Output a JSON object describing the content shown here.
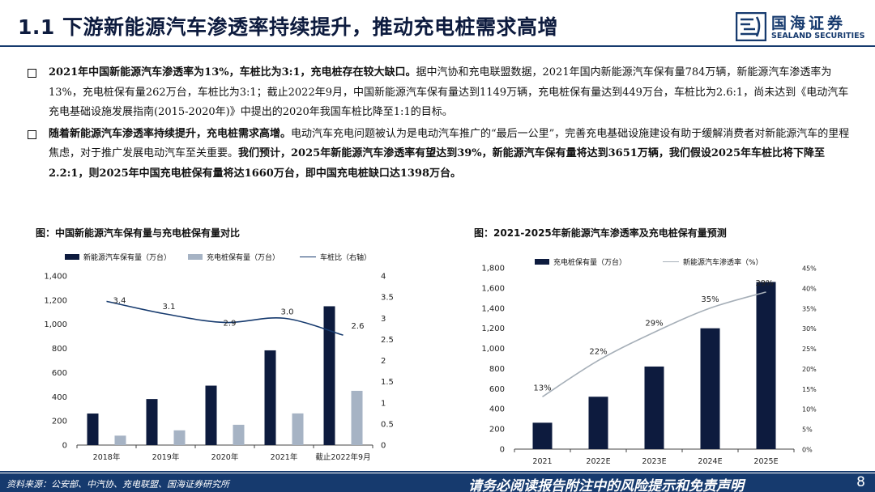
{
  "header": {
    "title": "1.1 下游新能源汽车渗透率持续提升，推动充电桩需求高增",
    "logo_cn": "国海证券",
    "logo_en": "SEALAND SECURITIES"
  },
  "bullets": [
    {
      "bold": "2021年中国新能源汽车渗透率为13%，车桩比为3:1，充电桩存在较大缺口。",
      "text": "据中汽协和充电联盟数据，2021年国内新能源汽车保有量784万辆，新能源汽车渗透率为13%，充电桩保有量262万台，车桩比为3:1；截止2022年9月，中国新能源汽车保有量达到1149万辆，充电桩保有量达到449万台，车桩比为2.6:1，尚未达到《电动汽车充电基础设施发展指南(2015-2020年)》中提出的2020年我国车桩比降至1:1的目标。",
      "bold2": ""
    },
    {
      "bold": "随着新能源汽车渗透率持续提升，充电桩需求高增。",
      "text": "电动汽车充电问题被认为是电动汽车推广的“最后一公里”，完善充电基础设施建设有助于缓解消费者对新能源汽车的里程焦虑，对于推广发展电动汽车至关重要。",
      "bold2": "我们预计，2025年新能源汽车渗透率有望达到39%，新能源汽车保有量将达到3651万辆，我们假设2025年车桩比将下降至2.2:1，则2025年中国充电桩保有量将达1660万台，即中国充电桩缺口达1398万台。"
    }
  ],
  "chart_left": {
    "title": "图：中国新能源汽车保有量与充电桩保有量对比",
    "legend": {
      "ev": "新能源汽车保有量（万台）",
      "pile": "充电桩保有量（万台）",
      "ratio": "车桩比（右轴）"
    },
    "colors": {
      "ev": "#0d1b3e",
      "pile": "#a6b3c4",
      "ratio": "#163a6e"
    }
  },
  "chart_right": {
    "title": "图：2021-2025年新能源汽车渗透率及充电桩保有量预测",
    "legend": {
      "pile": "充电桩保有量（万台）",
      "penetration": "新能源汽车渗透率（%）"
    },
    "colors": {
      "pile": "#0d1b3e",
      "penetration": "#a6afb8"
    }
  },
  "chart_data": [
    {
      "type": "bar",
      "categories": [
        "2018年",
        "2019年",
        "2020年",
        "2021年",
        "截止2022年9月"
      ],
      "series": [
        {
          "name": "新能源汽车保有量（万台）",
          "axis": "left",
          "values": [
            261,
            381,
            492,
            784,
            1149
          ]
        },
        {
          "name": "充电桩保有量（万台）",
          "axis": "left",
          "values": [
            78,
            122,
            168,
            262,
            449
          ]
        },
        {
          "name": "车桩比（右轴）",
          "type": "line",
          "axis": "right",
          "values": [
            3.4,
            3.1,
            2.9,
            3.0,
            2.6
          ],
          "labels": [
            "3.4",
            "3.1",
            "2.9",
            "3.0",
            "2.6"
          ]
        }
      ],
      "ylim": [
        0,
        1400
      ],
      "yticks": [
        0,
        200,
        400,
        600,
        800,
        1000,
        1200,
        1400
      ],
      "ytick_labels": [
        "0",
        "200",
        "400",
        "600",
        "800",
        "1,000",
        "1,200",
        "1,400"
      ],
      "y2lim": [
        0,
        4
      ],
      "y2ticks": [
        0,
        0.5,
        1,
        1.5,
        2,
        2.5,
        3,
        3.5,
        4
      ],
      "y2tick_labels": [
        "0",
        "0.5",
        "1",
        "1.5",
        "2",
        "2.5",
        "3",
        "3.5",
        "4"
      ],
      "legend_position": "top"
    },
    {
      "type": "bar",
      "categories": [
        "2021",
        "2022E",
        "2023E",
        "2024E",
        "2025E"
      ],
      "series": [
        {
          "name": "充电桩保有量（万台）",
          "axis": "left",
          "values": [
            262,
            520,
            820,
            1200,
            1660
          ]
        },
        {
          "name": "新能源汽车渗透率（%）",
          "type": "line",
          "axis": "right",
          "values": [
            13,
            22,
            29,
            35,
            39
          ],
          "labels": [
            "13%",
            "22%",
            "29%",
            "35%",
            "39%"
          ]
        }
      ],
      "ylim": [
        0,
        1800
      ],
      "yticks": [
        0,
        200,
        400,
        600,
        800,
        1000,
        1200,
        1400,
        1600,
        1800
      ],
      "ytick_labels": [
        "0",
        "200",
        "400",
        "600",
        "800",
        "1,000",
        "1,200",
        "1,400",
        "1,600",
        "1,800"
      ],
      "y2lim": [
        0,
        45
      ],
      "y2ticks": [
        0,
        5,
        10,
        15,
        20,
        25,
        30,
        35,
        40,
        45
      ],
      "y2tick_labels": [
        "0%",
        "5%",
        "10%",
        "15%",
        "20%",
        "25%",
        "30%",
        "35%",
        "40%",
        "45%"
      ],
      "legend_position": "top"
    }
  ],
  "footer": {
    "source": "资料来源：公安部、中汽协、充电联盟、国海证券研究所",
    "disclaimer": "请务必阅读报告附注中的风险提示和免责声明",
    "page": "8"
  }
}
